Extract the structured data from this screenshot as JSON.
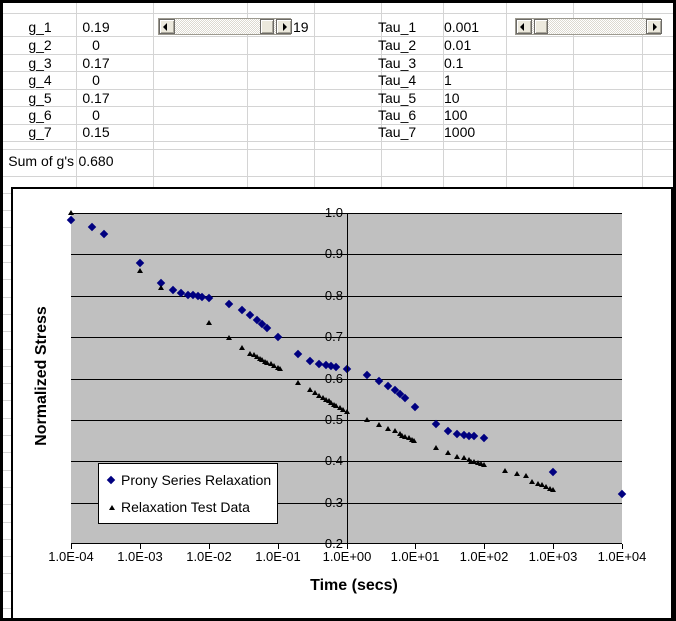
{
  "sheet": {
    "g_table": {
      "rows": [
        {
          "label": "g_1",
          "value": "0.19"
        },
        {
          "label": "g_2",
          "value": "0"
        },
        {
          "label": "g_3",
          "value": "0.17"
        },
        {
          "label": "g_4",
          "value": "0"
        },
        {
          "label": "g_5",
          "value": "0.17"
        },
        {
          "label": "g_6",
          "value": "0"
        },
        {
          "label": "g_7",
          "value": "0.15"
        }
      ],
      "sum_label": "Sum of g's",
      "sum_value": "0.680",
      "scrollbar_value": "19"
    },
    "tau_table": {
      "rows": [
        {
          "label": "Tau_1",
          "value": "0.001"
        },
        {
          "label": "Tau_2",
          "value": "0.01"
        },
        {
          "label": "Tau_3",
          "value": "0.1"
        },
        {
          "label": "Tau_4",
          "value": "1"
        },
        {
          "label": "Tau_5",
          "value": "10"
        },
        {
          "label": "Tau_6",
          "value": "100"
        },
        {
          "label": "Tau_7",
          "value": "1000"
        }
      ]
    }
  },
  "chart_data": {
    "type": "scatter",
    "x_scale": "log",
    "xlim": [
      0.0001,
      10000
    ],
    "ylim": [
      0.2,
      1.0
    ],
    "grid": "horizontal",
    "plot_bg": "#c0c0c0",
    "xlabel": "Time (secs)",
    "ylabel": "Normalized Stress",
    "legend_position": "inside-lower-left",
    "x_tick_labels": [
      "1.0E-04",
      "1.0E-03",
      "1.0E-02",
      "1.0E-01",
      "1.0E+00",
      "1.0E+01",
      "1.0E+02",
      "1.0E+03",
      "1.0E+04"
    ],
    "y_tick_labels": [
      "1.0",
      "0.9",
      "0.8",
      "0.7",
      "0.6",
      "0.5",
      "0.4",
      "0.3",
      "0.2"
    ],
    "y_tick_values": [
      1.0,
      0.9,
      0.8,
      0.7,
      0.6,
      0.5,
      0.4,
      0.3,
      0.2
    ],
    "series": [
      {
        "name": "Prony Series Relaxation",
        "marker": "diamond",
        "color": "#000080",
        "points": [
          [
            0.0001,
            0.982
          ],
          [
            0.0002,
            0.965
          ],
          [
            0.0003,
            0.95
          ],
          [
            0.001,
            0.878
          ],
          [
            0.002,
            0.832
          ],
          [
            0.003,
            0.814
          ],
          [
            0.004,
            0.807
          ],
          [
            0.005,
            0.803
          ],
          [
            0.006,
            0.801
          ],
          [
            0.007,
            0.799
          ],
          [
            0.008,
            0.797
          ],
          [
            0.01,
            0.794
          ],
          [
            0.02,
            0.779
          ],
          [
            0.03,
            0.765
          ],
          [
            0.04,
            0.753
          ],
          [
            0.05,
            0.742
          ],
          [
            0.06,
            0.732
          ],
          [
            0.07,
            0.723
          ],
          [
            0.1,
            0.701
          ],
          [
            0.2,
            0.66
          ],
          [
            0.3,
            0.643
          ],
          [
            0.4,
            0.636
          ],
          [
            0.5,
            0.633
          ],
          [
            0.6,
            0.63
          ],
          [
            0.7,
            0.629
          ],
          [
            1,
            0.624
          ],
          [
            2,
            0.609
          ],
          [
            3,
            0.595
          ],
          [
            4,
            0.583
          ],
          [
            5,
            0.572
          ],
          [
            6,
            0.562
          ],
          [
            7,
            0.553
          ],
          [
            10,
            0.531
          ],
          [
            20,
            0.49
          ],
          [
            30,
            0.474
          ],
          [
            40,
            0.467
          ],
          [
            50,
            0.464
          ],
          [
            60,
            0.462
          ],
          [
            70,
            0.46
          ],
          [
            100,
            0.456
          ],
          [
            1000,
            0.375
          ],
          [
            10000,
            0.32
          ]
        ]
      },
      {
        "name": "Relaxation Test Data",
        "marker": "triangle",
        "color": "#000000",
        "points": [
          [
            0.0001,
            1.0
          ],
          [
            0.001,
            0.861
          ],
          [
            0.002,
            0.818
          ],
          [
            0.01,
            0.735
          ],
          [
            0.02,
            0.699
          ],
          [
            0.03,
            0.673
          ],
          [
            0.04,
            0.66
          ],
          [
            0.045,
            0.656
          ],
          [
            0.05,
            0.652
          ],
          [
            0.055,
            0.648
          ],
          [
            0.06,
            0.645
          ],
          [
            0.065,
            0.641
          ],
          [
            0.07,
            0.638
          ],
          [
            0.08,
            0.634
          ],
          [
            0.09,
            0.63
          ],
          [
            0.1,
            0.626
          ],
          [
            0.11,
            0.622
          ],
          [
            0.2,
            0.588
          ],
          [
            0.3,
            0.572
          ],
          [
            0.35,
            0.564
          ],
          [
            0.4,
            0.558
          ],
          [
            0.45,
            0.553
          ],
          [
            0.5,
            0.549
          ],
          [
            0.55,
            0.545
          ],
          [
            0.6,
            0.541
          ],
          [
            0.65,
            0.537
          ],
          [
            0.7,
            0.533
          ],
          [
            0.8,
            0.528
          ],
          [
            0.9,
            0.524
          ],
          [
            1,
            0.52
          ],
          [
            2,
            0.5
          ],
          [
            3,
            0.487
          ],
          [
            4,
            0.477
          ],
          [
            5,
            0.472
          ],
          [
            6,
            0.466
          ],
          [
            6.5,
            0.462
          ],
          [
            7,
            0.458
          ],
          [
            8,
            0.455
          ],
          [
            9,
            0.452
          ],
          [
            9.5,
            0.45
          ],
          [
            20,
            0.433
          ],
          [
            30,
            0.419
          ],
          [
            40,
            0.411
          ],
          [
            50,
            0.407
          ],
          [
            60,
            0.402
          ],
          [
            65,
            0.399
          ],
          [
            70,
            0.397
          ],
          [
            80,
            0.395
          ],
          [
            90,
            0.393
          ],
          [
            100,
            0.391
          ],
          [
            200,
            0.376
          ],
          [
            300,
            0.368
          ],
          [
            400,
            0.364
          ],
          [
            500,
            0.35
          ],
          [
            600,
            0.346
          ],
          [
            700,
            0.342
          ],
          [
            800,
            0.338
          ],
          [
            900,
            0.334
          ],
          [
            1000,
            0.33
          ]
        ]
      }
    ]
  }
}
